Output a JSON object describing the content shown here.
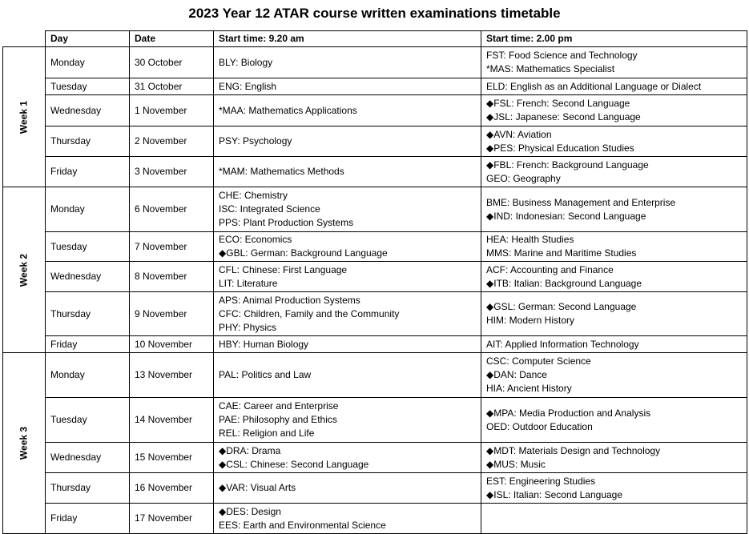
{
  "title": "2023 Year 12 ATAR course written examinations timetable",
  "headers": {
    "day": "Day",
    "date": "Date",
    "am": "Start time: 9.20 am",
    "pm": "Start time: 2.00 pm"
  },
  "weeks": [
    {
      "label": "Week 1",
      "rows": [
        {
          "day": "Monday",
          "date": "30 October",
          "am": [
            "BLY: Biology"
          ],
          "pm": [
            "FST: Food Science and Technology",
            "*MAS: Mathematics Specialist"
          ]
        },
        {
          "day": "Tuesday",
          "date": "31 October",
          "am": [
            "ENG: English"
          ],
          "pm": [
            "ELD: English as an Additional Language or Dialect"
          ]
        },
        {
          "day": "Wednesday",
          "date": "1 November",
          "am": [
            "*MAA: Mathematics Applications"
          ],
          "pm": [
            "◆FSL: French: Second Language",
            "◆JSL: Japanese: Second Language"
          ]
        },
        {
          "day": "Thursday",
          "date": "2 November",
          "am": [
            "PSY: Psychology"
          ],
          "pm": [
            "◆AVN: Aviation",
            "◆PES: Physical Education Studies"
          ]
        },
        {
          "day": "Friday",
          "date": "3 November",
          "am": [
            "*MAM: Mathematics Methods"
          ],
          "pm": [
            "◆FBL: French: Background Language",
            "GEO: Geography"
          ]
        }
      ]
    },
    {
      "label": "Week 2",
      "rows": [
        {
          "day": "Monday",
          "date": "6 November",
          "am": [
            "CHE: Chemistry",
            "ISC: Integrated Science",
            "PPS: Plant Production Systems"
          ],
          "pm": [
            "BME: Business Management and Enterprise",
            "◆IND: Indonesian: Second Language"
          ]
        },
        {
          "day": "Tuesday",
          "date": "7 November",
          "am": [
            "ECO: Economics",
            "◆GBL: German: Background Language"
          ],
          "pm": [
            "HEA: Health Studies",
            "MMS: Marine and Maritime Studies"
          ]
        },
        {
          "day": "Wednesday",
          "date": "8 November",
          "am": [
            "CFL: Chinese: First Language",
            "LIT: Literature"
          ],
          "pm": [
            "ACF: Accounting and Finance",
            "◆ITB: Italian: Background Language"
          ]
        },
        {
          "day": "Thursday",
          "date": "9 November",
          "am": [
            "APS: Animal Production Systems",
            "CFC: Children, Family and the Community",
            "PHY: Physics"
          ],
          "pm": [
            "◆GSL: German: Second Language",
            "HIM: Modern History"
          ]
        },
        {
          "day": "Friday",
          "date": "10 November",
          "am": [
            "HBY: Human Biology"
          ],
          "pm": [
            "AIT: Applied Information Technology"
          ]
        }
      ]
    },
    {
      "label": "Week 3",
      "rows": [
        {
          "day": "Monday",
          "date": "13 November",
          "am": [
            "PAL: Politics and Law"
          ],
          "pm": [
            "CSC: Computer Science",
            "◆DAN: Dance",
            "HIA: Ancient History"
          ]
        },
        {
          "day": "Tuesday",
          "date": "14 November",
          "am": [
            "CAE: Career and Enterprise",
            "PAE: Philosophy and Ethics",
            "REL: Religion and Life"
          ],
          "pm": [
            "◆MPA: Media Production and Analysis",
            "OED: Outdoor Education"
          ]
        },
        {
          "day": "Wednesday",
          "date": "15 November",
          "am": [
            "◆DRA: Drama",
            "◆CSL: Chinese: Second Language"
          ],
          "pm": [
            "◆MDT: Materials Design and Technology",
            "◆MUS: Music"
          ]
        },
        {
          "day": "Thursday",
          "date": "16 November",
          "am": [
            "◆VAR: Visual Arts"
          ],
          "pm": [
            "EST: Engineering Studies",
            "◆ISL: Italian: Second Language"
          ]
        },
        {
          "day": "Friday",
          "date": "17 November",
          "am": [
            "◆DES: Design",
            "EES: Earth and Environmental Science"
          ],
          "pm": []
        }
      ]
    }
  ]
}
